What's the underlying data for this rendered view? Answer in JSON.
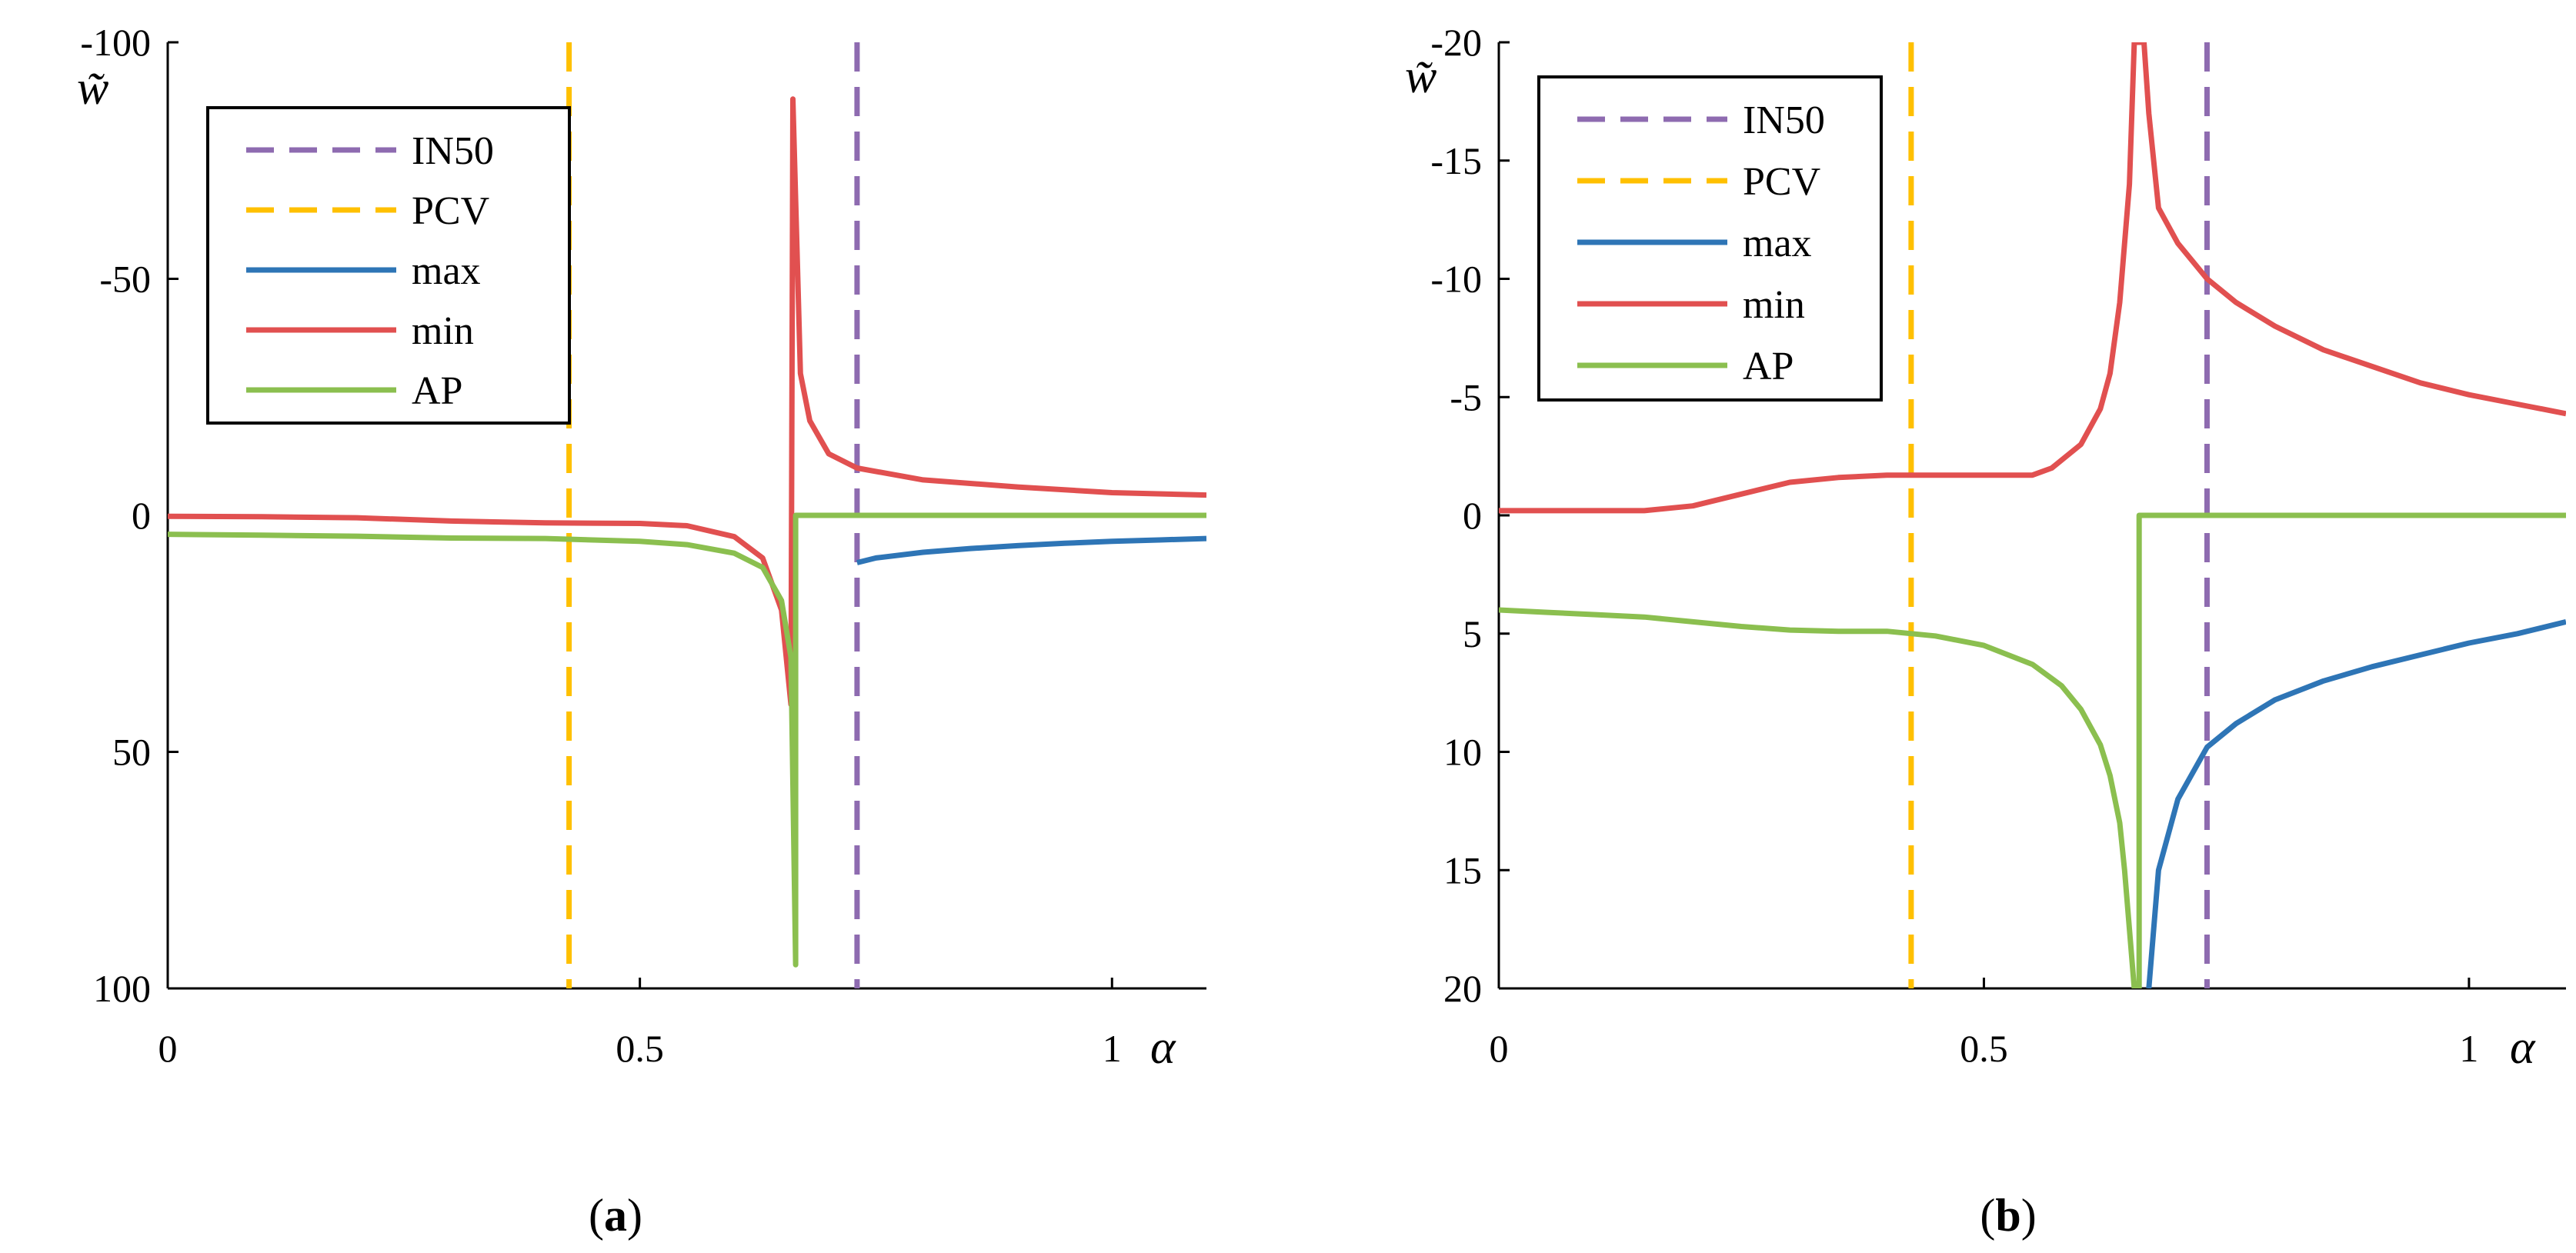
{
  "chart_data": [
    {
      "type": "line",
      "panel_label": "a",
      "ylabel": "w̃",
      "xlabel": "α",
      "xlim": [
        0,
        1.1
      ],
      "ylim": [
        100,
        -100
      ],
      "x_ticks": [
        0,
        0.5,
        1
      ],
      "x_tick_labels": [
        "0",
        "0.5",
        "1"
      ],
      "y_ticks": [
        -100,
        -50,
        0,
        50,
        100
      ],
      "y_tick_labels": [
        "-100",
        "-50",
        "0",
        "50",
        "100"
      ],
      "legend_position": "top-left",
      "vlines": [
        {
          "name": "IN50",
          "x": 0.73,
          "color": "#8e6bb0",
          "dash": true
        },
        {
          "name": "PCV",
          "x": 0.425,
          "color": "#ffc000",
          "dash": true
        }
      ],
      "series": [
        {
          "name": "max",
          "color": "#2e75b6",
          "x": [
            0.73,
            0.75,
            0.8,
            0.85,
            0.9,
            0.95,
            1.0,
            1.05,
            1.1
          ],
          "y": [
            10.0,
            9.0,
            7.8,
            7.0,
            6.4,
            5.9,
            5.5,
            5.2,
            4.9
          ]
        },
        {
          "name": "min",
          "color": "#e15050",
          "x": [
            0,
            0.1,
            0.2,
            0.3,
            0.4,
            0.5,
            0.55,
            0.6,
            0.63,
            0.65,
            0.66,
            0.662,
            0.67,
            0.68,
            0.7,
            0.73,
            0.8,
            0.9,
            1.0,
            1.1
          ],
          "y": [
            0.2,
            0.3,
            0.5,
            1.2,
            1.6,
            1.7,
            2.2,
            4.5,
            9.0,
            20.0,
            40.0,
            -88.0,
            -30.0,
            -20.0,
            -13.0,
            -10.0,
            -7.5,
            -6.0,
            -4.8,
            -4.3
          ]
        },
        {
          "name": "AP",
          "color": "#8bbf4f",
          "x": [
            0,
            0.1,
            0.2,
            0.3,
            0.4,
            0.5,
            0.55,
            0.6,
            0.63,
            0.65,
            0.66,
            0.665,
            0.665,
            0.7,
            0.8,
            0.9,
            1.0,
            1.1
          ],
          "y": [
            4.0,
            4.2,
            4.4,
            4.8,
            4.9,
            5.5,
            6.2,
            8.0,
            11.0,
            18.0,
            30.0,
            95.0,
            0,
            0,
            0,
            0,
            0,
            0
          ]
        }
      ]
    },
    {
      "type": "line",
      "panel_label": "b",
      "ylabel": "w̃",
      "xlabel": "α",
      "xlim": [
        0,
        1.1
      ],
      "ylim": [
        20,
        -20
      ],
      "x_ticks": [
        0,
        0.5,
        1
      ],
      "x_tick_labels": [
        "0",
        "0.5",
        "1"
      ],
      "y_ticks": [
        -20,
        -15,
        -10,
        -5,
        0,
        5,
        10,
        15,
        20
      ],
      "y_tick_labels": [
        "-20",
        "-15",
        "-10",
        "-5",
        "0",
        "5",
        "10",
        "15",
        "20"
      ],
      "legend_position": "top-left",
      "vlines": [
        {
          "name": "IN50",
          "x": 0.73,
          "color": "#8e6bb0",
          "dash": true
        },
        {
          "name": "PCV",
          "x": 0.425,
          "color": "#ffc000",
          "dash": true
        }
      ],
      "series": [
        {
          "name": "max",
          "color": "#2e75b6",
          "x": [
            0.67,
            0.68,
            0.7,
            0.73,
            0.76,
            0.8,
            0.85,
            0.9,
            0.95,
            1.0,
            1.05,
            1.1
          ],
          "y": [
            20.0,
            15.0,
            12.0,
            9.8,
            8.8,
            7.8,
            7.0,
            6.4,
            5.9,
            5.4,
            5.0,
            4.5
          ]
        },
        {
          "name": "min",
          "color": "#e15050",
          "x": [
            0,
            0.05,
            0.1,
            0.15,
            0.2,
            0.25,
            0.3,
            0.35,
            0.4,
            0.45,
            0.5,
            0.55,
            0.57,
            0.6,
            0.62,
            0.63,
            0.64,
            0.65,
            0.655,
            0.662,
            0.665,
            0.67,
            0.68,
            0.7,
            0.73,
            0.76,
            0.8,
            0.85,
            0.9,
            0.95,
            1.0,
            1.05,
            1.1
          ],
          "y": [
            -0.2,
            -0.2,
            -0.2,
            -0.2,
            -0.4,
            -0.9,
            -1.4,
            -1.6,
            -1.7,
            -1.7,
            -1.7,
            -1.7,
            -2.0,
            -3.0,
            -4.5,
            -6.0,
            -9.0,
            -14.0,
            -20.0,
            -20.0,
            -20.0,
            -17.0,
            -13.0,
            -11.5,
            -10.0,
            -9.0,
            -8.0,
            -7.0,
            -6.3,
            -5.6,
            -5.1,
            -4.7,
            -4.3
          ]
        },
        {
          "name": "AP",
          "color": "#8bbf4f",
          "x": [
            0,
            0.05,
            0.1,
            0.15,
            0.2,
            0.25,
            0.3,
            0.35,
            0.4,
            0.45,
            0.5,
            0.55,
            0.58,
            0.6,
            0.62,
            0.63,
            0.64,
            0.645,
            0.65,
            0.655,
            0.66,
            0.66,
            0.7,
            0.8,
            0.9,
            1.0,
            1.1
          ],
          "y": [
            4.0,
            4.1,
            4.2,
            4.3,
            4.5,
            4.7,
            4.85,
            4.9,
            4.9,
            5.1,
            5.5,
            6.3,
            7.2,
            8.2,
            9.7,
            11.0,
            13.0,
            15.0,
            17.5,
            20.0,
            20.0,
            0,
            0,
            0,
            0,
            0,
            0
          ]
        }
      ]
    }
  ],
  "legend_labels": [
    "IN50",
    "PCV",
    "max",
    "min",
    "AP"
  ]
}
